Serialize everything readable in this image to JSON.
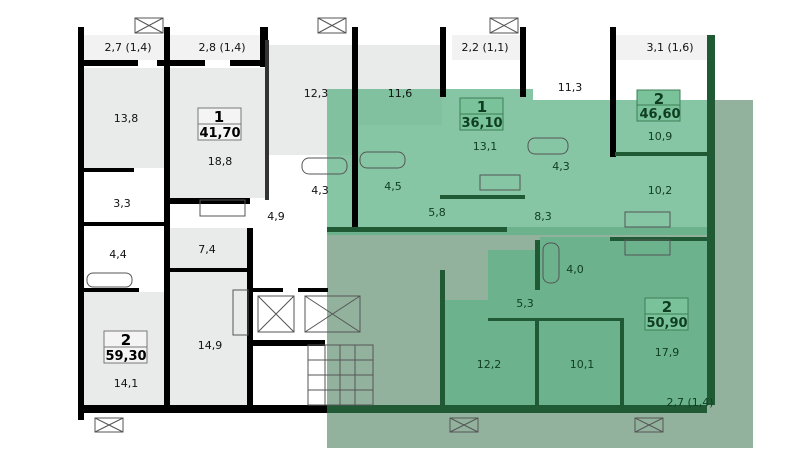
{
  "colors": {
    "wall": "#000000",
    "room_fill": "#e9ebea",
    "highlight_green": "#5fb387",
    "overlay_gray_green": "#7fa58d",
    "dark_wall_green": "#1f5a35"
  },
  "apartments": [
    {
      "rooms": "1",
      "area": "41,70"
    },
    {
      "rooms": "1",
      "area": "36,10"
    },
    {
      "rooms": "2",
      "area": "46,60"
    },
    {
      "rooms": "2",
      "area": "59,30"
    },
    {
      "rooms": "2",
      "area": "50,90"
    }
  ],
  "rooms": [
    "2,7 (1,4)",
    "2,8 (1,4)",
    "2,2 (1,1)",
    "3,1 (1,6)",
    "13,8",
    "12,3",
    "11,6",
    "11,3",
    "18,8",
    "13,1",
    "10,9",
    "4,3",
    "4,5",
    "4,3",
    "10,2",
    "3,3",
    "4,9",
    "5,8",
    "8,3",
    "7,4",
    "4,4",
    "4,0",
    "5,3",
    "14,9",
    "14,1",
    "12,2",
    "10,1",
    "17,9",
    "2,7 (1,4)"
  ],
  "icons": [
    "window-vent-icon",
    "bathtub-icon",
    "toilet-icon",
    "sink-icon",
    "washing-machine-icon",
    "stove-icon",
    "door-swing-icon",
    "stairs-icon",
    "elevator-icon"
  ]
}
